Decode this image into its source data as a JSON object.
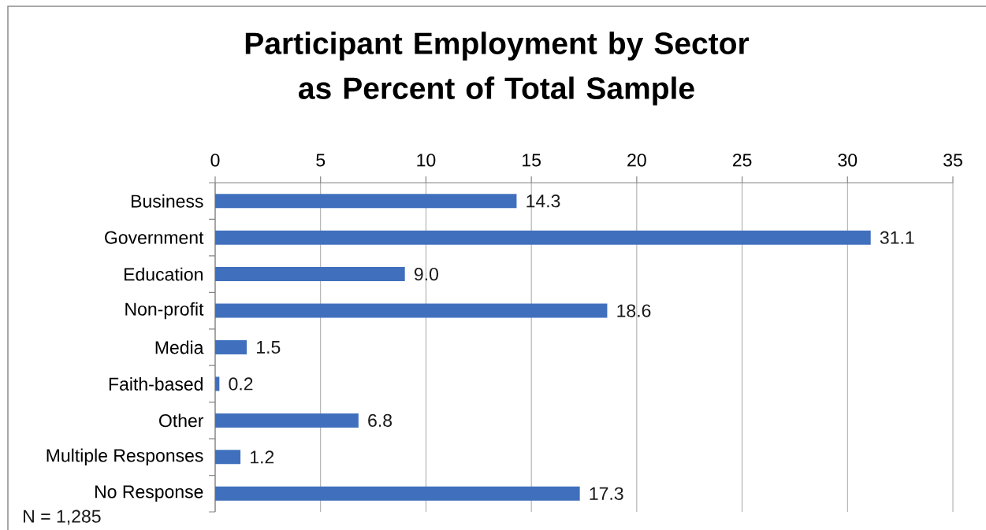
{
  "chart_data": {
    "type": "bar",
    "orientation": "horizontal",
    "title": "Participant Employment by Sector as Percent of Total Sample",
    "categories": [
      "Business",
      "Government",
      "Education",
      "Non-profit",
      "Media",
      "Faith-based",
      "Other",
      "Multiple Responses",
      "No Response"
    ],
    "values": [
      14.3,
      31.1,
      9.0,
      18.6,
      1.5,
      0.2,
      6.8,
      1.2,
      17.3
    ],
    "value_labels": [
      "14.3",
      "31.1",
      "9.0",
      "18.6",
      "1.5",
      "0.2",
      "6.8",
      "1.2",
      "17.3"
    ],
    "color": "#4070bd",
    "xlim": [
      0,
      35
    ],
    "xticks": [
      0,
      5,
      10,
      15,
      20,
      25,
      30,
      35
    ],
    "grid": "x",
    "annotations": [
      "N = 1,285"
    ]
  }
}
